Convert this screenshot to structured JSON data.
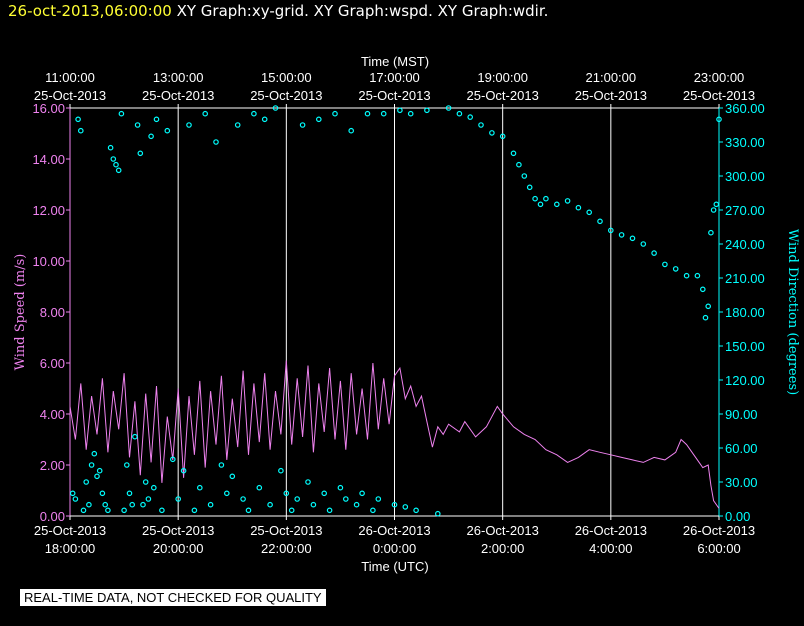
{
  "header": {
    "timestamp": "26-oct-2013,06:00:00",
    "graphs": "XY Graph:xy-grid.  XY Graph:wspd.  XY Graph:wdir."
  },
  "disclaimer": "REAL-TIME DATA, NOT CHECKED FOR QUALITY",
  "colors": {
    "wspd": "#ee82ee",
    "wdir": "#00ffff",
    "grid": "#ffffff",
    "axis_left": "#ee82ee",
    "axis_right": "#00ffff",
    "header_ts": "#ffff33"
  },
  "chart_data": {
    "type": "line",
    "title": "",
    "top_axis": {
      "label": "Time (MST)",
      "ticks": [
        {
          "time": "11:00:00",
          "date": "25-Oct-2013"
        },
        {
          "time": "13:00:00",
          "date": "25-Oct-2013"
        },
        {
          "time": "15:00:00",
          "date": "25-Oct-2013"
        },
        {
          "time": "17:00:00",
          "date": "25-Oct-2013"
        },
        {
          "time": "19:00:00",
          "date": "25-Oct-2013"
        },
        {
          "time": "21:00:00",
          "date": "25-Oct-2013"
        },
        {
          "time": "23:00:00",
          "date": "25-Oct-2013"
        }
      ]
    },
    "bottom_axis": {
      "label": "Time (UTC)",
      "ticks": [
        {
          "date": "25-Oct-2013",
          "time": "18:00:00"
        },
        {
          "date": "25-Oct-2013",
          "time": "20:00:00"
        },
        {
          "date": "25-Oct-2013",
          "time": "22:00:00"
        },
        {
          "date": "26-Oct-2013",
          "time": "0:00:00"
        },
        {
          "date": "26-Oct-2013",
          "time": "2:00:00"
        },
        {
          "date": "26-Oct-2013",
          "time": "4:00:00"
        },
        {
          "date": "26-Oct-2013",
          "time": "6:00:00"
        }
      ]
    },
    "x_range_hours_utc": [
      0,
      12
    ],
    "left_axis": {
      "label": "Wind Speed (m/s)",
      "range": [
        0,
        16
      ],
      "ticks": [
        "0.00",
        "2.00",
        "4.00",
        "6.00",
        "8.00",
        "10.00",
        "12.00",
        "14.00",
        "16.00"
      ]
    },
    "right_axis": {
      "label": "Wind Direction (degrees)",
      "range": [
        0,
        360
      ],
      "ticks": [
        "0.00",
        "30.00",
        "60.00",
        "90.00",
        "120.00",
        "150.00",
        "180.00",
        "210.00",
        "240.00",
        "270.00",
        "300.00",
        "330.00",
        "360.00"
      ]
    },
    "series": [
      {
        "name": "Wind Speed",
        "style": "line",
        "units": "m/s",
        "note": "hours since 25-Oct-2013 18:00 UTC",
        "points": [
          [
            0,
            4.3
          ],
          [
            0.1,
            3.0
          ],
          [
            0.2,
            5.2
          ],
          [
            0.3,
            2.6
          ],
          [
            0.4,
            4.7
          ],
          [
            0.5,
            3.2
          ],
          [
            0.6,
            5.4
          ],
          [
            0.7,
            2.5
          ],
          [
            0.8,
            4.9
          ],
          [
            0.9,
            3.4
          ],
          [
            1.0,
            5.6
          ],
          [
            1.1,
            2.3
          ],
          [
            1.2,
            4.5
          ],
          [
            1.3,
            1.6
          ],
          [
            1.4,
            4.8
          ],
          [
            1.5,
            2.1
          ],
          [
            1.6,
            5.1
          ],
          [
            1.7,
            1.3
          ],
          [
            1.8,
            3.9
          ],
          [
            1.9,
            2.2
          ],
          [
            2.0,
            5.0
          ],
          [
            2.1,
            1.5
          ],
          [
            2.2,
            4.7
          ],
          [
            2.3,
            2.4
          ],
          [
            2.4,
            5.3
          ],
          [
            2.5,
            1.9
          ],
          [
            2.6,
            4.9
          ],
          [
            2.7,
            2.8
          ],
          [
            2.8,
            5.5
          ],
          [
            2.9,
            2.2
          ],
          [
            3.0,
            4.6
          ],
          [
            3.1,
            2.7
          ],
          [
            3.2,
            5.7
          ],
          [
            3.3,
            2.4
          ],
          [
            3.4,
            5.2
          ],
          [
            3.5,
            2.9
          ],
          [
            3.6,
            5.6
          ],
          [
            3.7,
            2.6
          ],
          [
            3.8,
            4.9
          ],
          [
            3.9,
            3.2
          ],
          [
            4.0,
            6.1
          ],
          [
            4.1,
            2.8
          ],
          [
            4.2,
            5.4
          ],
          [
            4.3,
            3.1
          ],
          [
            4.4,
            5.9
          ],
          [
            4.5,
            2.5
          ],
          [
            4.6,
            5.2
          ],
          [
            4.7,
            3.3
          ],
          [
            4.8,
            5.8
          ],
          [
            4.9,
            3.0
          ],
          [
            5.0,
            5.3
          ],
          [
            5.1,
            2.6
          ],
          [
            5.2,
            5.6
          ],
          [
            5.3,
            3.2
          ],
          [
            5.4,
            5.0
          ],
          [
            5.5,
            3.0
          ],
          [
            5.6,
            6.0
          ],
          [
            5.7,
            3.4
          ],
          [
            5.8,
            5.4
          ],
          [
            5.9,
            3.6
          ],
          [
            6.0,
            5.5
          ],
          [
            6.1,
            5.8
          ],
          [
            6.2,
            4.6
          ],
          [
            6.3,
            5.1
          ],
          [
            6.4,
            4.3
          ],
          [
            6.5,
            4.7
          ],
          [
            6.6,
            3.7
          ],
          [
            6.7,
            2.7
          ],
          [
            6.8,
            3.5
          ],
          [
            6.9,
            3.2
          ],
          [
            7.0,
            3.6
          ],
          [
            7.2,
            3.3
          ],
          [
            7.3,
            3.7
          ],
          [
            7.5,
            3.1
          ],
          [
            7.7,
            3.5
          ],
          [
            7.9,
            4.3
          ],
          [
            8.0,
            4.0
          ],
          [
            8.2,
            3.5
          ],
          [
            8.4,
            3.2
          ],
          [
            8.6,
            3.0
          ],
          [
            8.8,
            2.6
          ],
          [
            9.0,
            2.4
          ],
          [
            9.2,
            2.1
          ],
          [
            9.4,
            2.3
          ],
          [
            9.6,
            2.6
          ],
          [
            9.8,
            2.5
          ],
          [
            10.0,
            2.4
          ],
          [
            10.2,
            2.3
          ],
          [
            10.4,
            2.2
          ],
          [
            10.6,
            2.1
          ],
          [
            10.8,
            2.3
          ],
          [
            11.0,
            2.2
          ],
          [
            11.2,
            2.5
          ],
          [
            11.3,
            3.0
          ],
          [
            11.4,
            2.8
          ],
          [
            11.6,
            2.2
          ],
          [
            11.7,
            1.9
          ],
          [
            11.8,
            2.0
          ],
          [
            11.85,
            1.2
          ],
          [
            11.9,
            0.6
          ],
          [
            12.0,
            0.3
          ]
        ]
      },
      {
        "name": "Wind Direction",
        "style": "scatter",
        "units": "degrees",
        "note": "hours since 25-Oct-2013 18:00 UTC",
        "points": [
          [
            0.05,
            20
          ],
          [
            0.1,
            15
          ],
          [
            0.15,
            350
          ],
          [
            0.2,
            340
          ],
          [
            0.25,
            5
          ],
          [
            0.3,
            30
          ],
          [
            0.35,
            10
          ],
          [
            0.4,
            45
          ],
          [
            0.45,
            55
          ],
          [
            0.5,
            35
          ],
          [
            0.55,
            40
          ],
          [
            0.6,
            20
          ],
          [
            0.65,
            10
          ],
          [
            0.7,
            5
          ],
          [
            0.75,
            325
          ],
          [
            0.8,
            315
          ],
          [
            0.85,
            310
          ],
          [
            0.9,
            305
          ],
          [
            0.95,
            355
          ],
          [
            1.0,
            5
          ],
          [
            1.05,
            45
          ],
          [
            1.1,
            20
          ],
          [
            1.15,
            10
          ],
          [
            1.2,
            70
          ],
          [
            1.25,
            345
          ],
          [
            1.3,
            320
          ],
          [
            1.35,
            10
          ],
          [
            1.4,
            30
          ],
          [
            1.45,
            15
          ],
          [
            1.5,
            335
          ],
          [
            1.55,
            25
          ],
          [
            1.6,
            350
          ],
          [
            1.7,
            5
          ],
          [
            1.8,
            340
          ],
          [
            1.9,
            50
          ],
          [
            2.0,
            15
          ],
          [
            2.1,
            40
          ],
          [
            2.2,
            345
          ],
          [
            2.3,
            5
          ],
          [
            2.4,
            25
          ],
          [
            2.5,
            355
          ],
          [
            2.6,
            10
          ],
          [
            2.7,
            330
          ],
          [
            2.8,
            45
          ],
          [
            2.9,
            20
          ],
          [
            3.0,
            35
          ],
          [
            3.1,
            345
          ],
          [
            3.2,
            15
          ],
          [
            3.3,
            5
          ],
          [
            3.4,
            355
          ],
          [
            3.5,
            25
          ],
          [
            3.6,
            350
          ],
          [
            3.7,
            10
          ],
          [
            3.8,
            360
          ],
          [
            3.9,
            40
          ],
          [
            4.0,
            20
          ],
          [
            4.1,
            5
          ],
          [
            4.2,
            15
          ],
          [
            4.3,
            345
          ],
          [
            4.4,
            30
          ],
          [
            4.5,
            10
          ],
          [
            4.6,
            350
          ],
          [
            4.7,
            20
          ],
          [
            4.8,
            5
          ],
          [
            4.9,
            355
          ],
          [
            5.0,
            25
          ],
          [
            5.1,
            15
          ],
          [
            5.2,
            340
          ],
          [
            5.3,
            10
          ],
          [
            5.4,
            20
          ],
          [
            5.5,
            355
          ],
          [
            5.6,
            5
          ],
          [
            5.7,
            15
          ],
          [
            5.8,
            355
          ],
          [
            6.0,
            10
          ],
          [
            6.1,
            358
          ],
          [
            6.2,
            8
          ],
          [
            6.3,
            355
          ],
          [
            6.4,
            5
          ],
          [
            6.6,
            358
          ],
          [
            6.8,
            2
          ],
          [
            7.0,
            360
          ],
          [
            7.2,
            355
          ],
          [
            7.4,
            352
          ],
          [
            7.6,
            345
          ],
          [
            7.8,
            338
          ],
          [
            8.0,
            335
          ],
          [
            8.2,
            320
          ],
          [
            8.3,
            310
          ],
          [
            8.4,
            300
          ],
          [
            8.5,
            290
          ],
          [
            8.6,
            280
          ],
          [
            8.7,
            275
          ],
          [
            8.8,
            280
          ],
          [
            9.0,
            275
          ],
          [
            9.2,
            278
          ],
          [
            9.4,
            272
          ],
          [
            9.6,
            268
          ],
          [
            9.8,
            260
          ],
          [
            10.0,
            252
          ],
          [
            10.2,
            248
          ],
          [
            10.4,
            245
          ],
          [
            10.6,
            240
          ],
          [
            10.8,
            232
          ],
          [
            11.0,
            222
          ],
          [
            11.2,
            218
          ],
          [
            11.4,
            212
          ],
          [
            11.6,
            212
          ],
          [
            11.7,
            200
          ],
          [
            11.75,
            175
          ],
          [
            11.8,
            185
          ],
          [
            11.85,
            250
          ],
          [
            11.9,
            270
          ],
          [
            11.95,
            275
          ],
          [
            12.0,
            350
          ]
        ]
      }
    ]
  }
}
